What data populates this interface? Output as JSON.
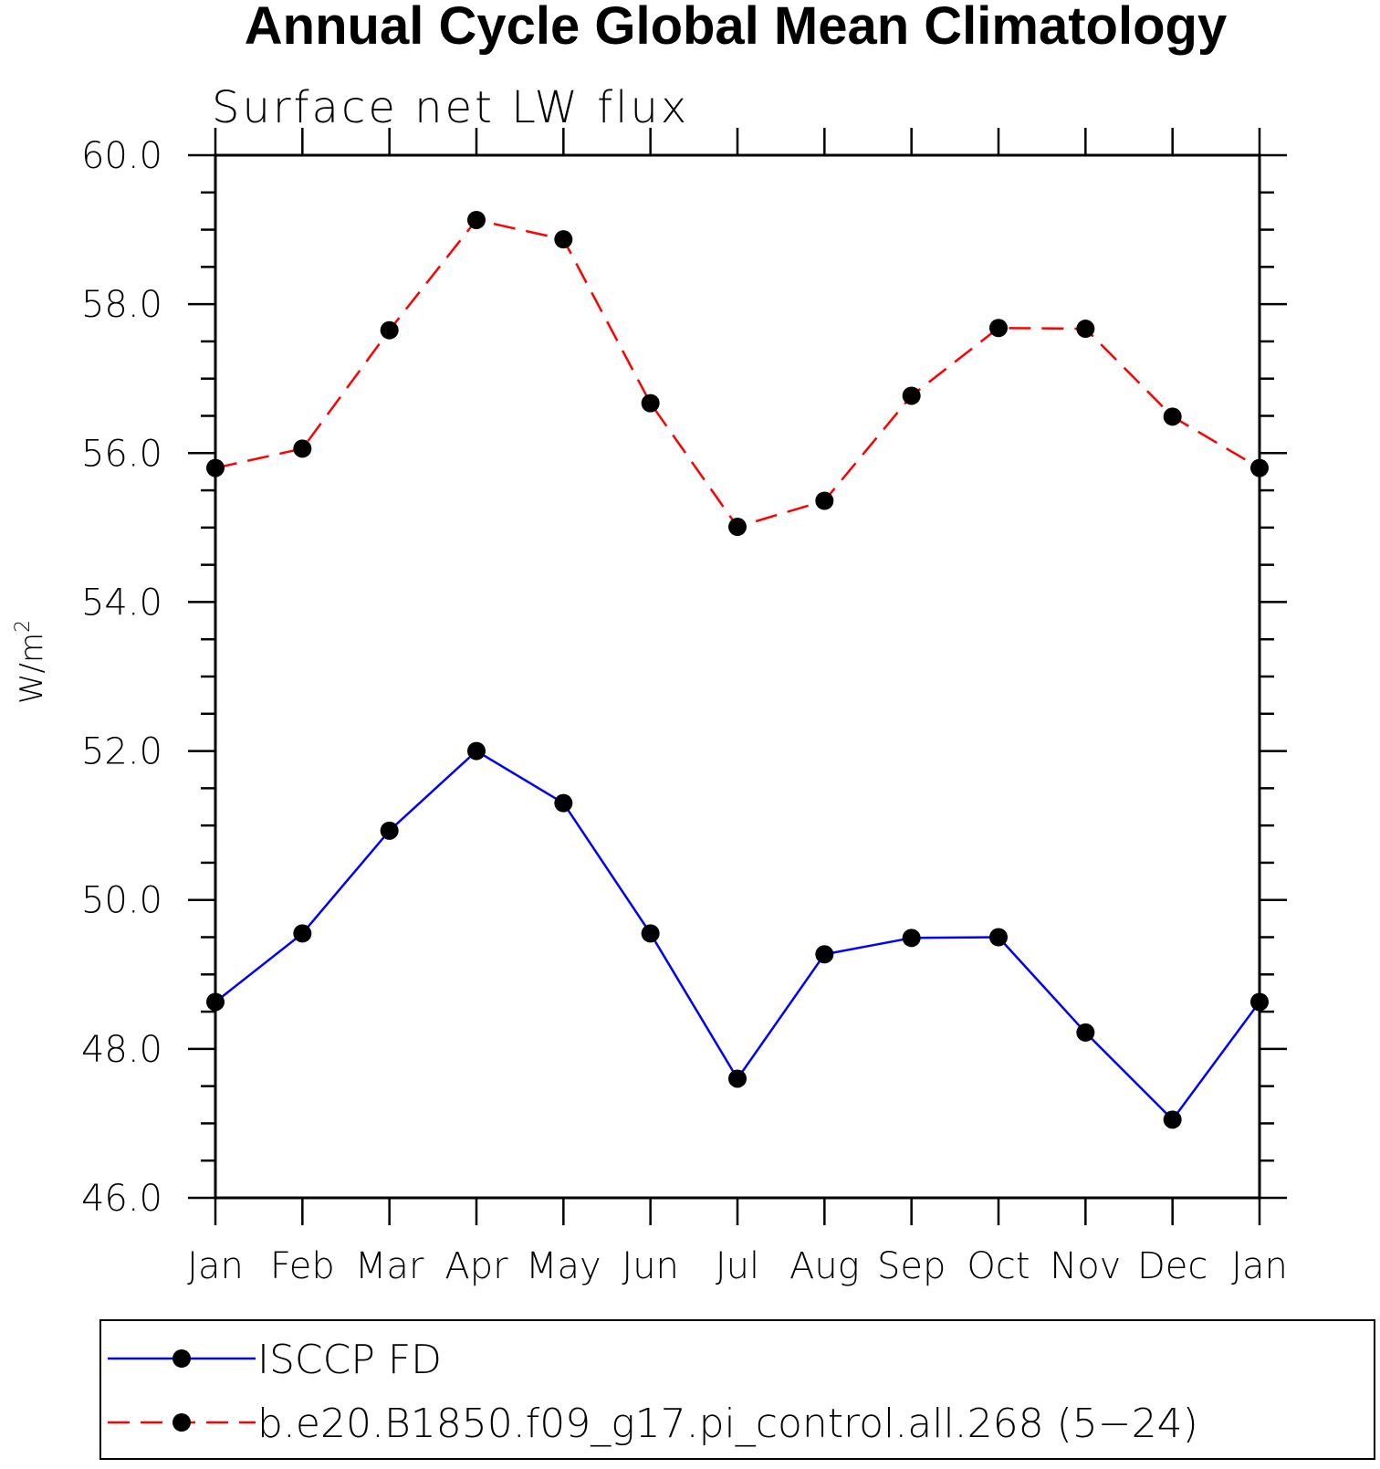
{
  "chart_data": {
    "type": "line",
    "title": "Annual Cycle Global Mean Climatology",
    "subtitle": "Surface net LW flux",
    "ylabel": "W/m",
    "ylabel_superscript": "2",
    "ylim": [
      46.0,
      60.0
    ],
    "yticks": [
      "46.0",
      "48.0",
      "50.0",
      "52.0",
      "54.0",
      "56.0",
      "58.0",
      "60.0"
    ],
    "categories": [
      "Jan",
      "Feb",
      "Mar",
      "Apr",
      "May",
      "Jun",
      "Jul",
      "Aug",
      "Sep",
      "Oct",
      "Nov",
      "Dec",
      "Jan"
    ],
    "grid": false,
    "legend_placement": "bottom",
    "series": [
      {
        "name": "ISCCP FD",
        "color": "#0000ff",
        "dash": "solid",
        "values": [
          48.63,
          49.55,
          50.93,
          52.0,
          51.3,
          49.55,
          47.6,
          49.27,
          49.49,
          49.5,
          48.22,
          47.05,
          48.63
        ]
      },
      {
        "name": "b.e20.B1850.f09_g17.pi_control.all.268 (5−24)",
        "color": "#ff0000",
        "dash": "dashed",
        "values": [
          55.8,
          56.06,
          57.65,
          59.13,
          58.87,
          56.67,
          55.01,
          55.36,
          56.77,
          57.68,
          57.67,
          56.49,
          55.8
        ]
      }
    ]
  }
}
